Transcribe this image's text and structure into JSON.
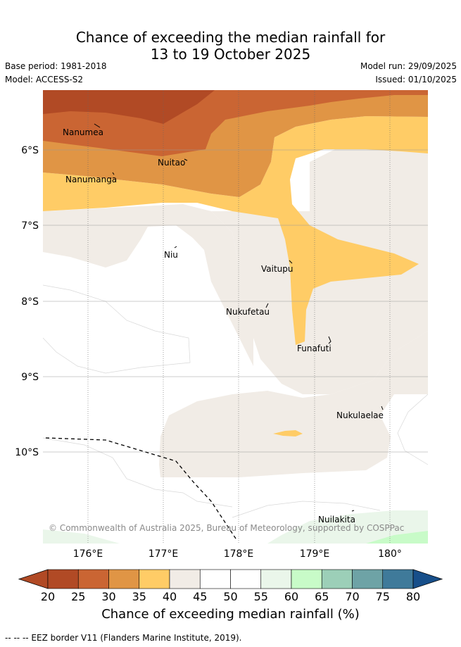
{
  "title": {
    "line1": "Chance of exceeding the median rainfall for",
    "line2": "13 to 19 October 2025"
  },
  "meta": {
    "base_period": "Base period: 1981-2018",
    "model": "Model: ACCESS-S2",
    "model_run": "Model run: 29/09/2025",
    "issued": "Issued: 01/10/2025"
  },
  "map": {
    "lon_labels": [
      "176°E",
      "177°E",
      "178°E",
      "179°E",
      "180°"
    ],
    "lat_labels": [
      "6°S",
      "7°S",
      "8°S",
      "9°S",
      "10°S"
    ],
    "places": [
      {
        "name": "Nanumea"
      },
      {
        "name": "Nuitao"
      },
      {
        "name": "Nanumanga"
      },
      {
        "name": "Niu"
      },
      {
        "name": "Vaitupu"
      },
      {
        "name": "Nukufetau"
      },
      {
        "name": "Funafuti"
      },
      {
        "name": "Nukulaelae"
      },
      {
        "name": "Nuilakita"
      }
    ],
    "copyright": "© Commonwealth of Australia 2025, Bureau of Meteorology, supported by COSPPac"
  },
  "colorbar": {
    "ticks": [
      "20",
      "25",
      "30",
      "35",
      "40",
      "45",
      "50",
      "55",
      "60",
      "65",
      "70",
      "75",
      "80"
    ],
    "colors": [
      "#b14a25",
      "#ca6533",
      "#e09545",
      "#ffcc66",
      "#f1ece6",
      "#ffffff",
      "#ffffff",
      "#eaf6ea",
      "#c8fbc8",
      "#9ccfb8",
      "#6ea3a6",
      "#3f7a9a",
      "#174f8a"
    ],
    "title": "Chance of exceeding median rainfall (%)"
  },
  "footnote": "--  --  -- EEZ border V11 (Flanders Marine Institute, 2019)."
}
